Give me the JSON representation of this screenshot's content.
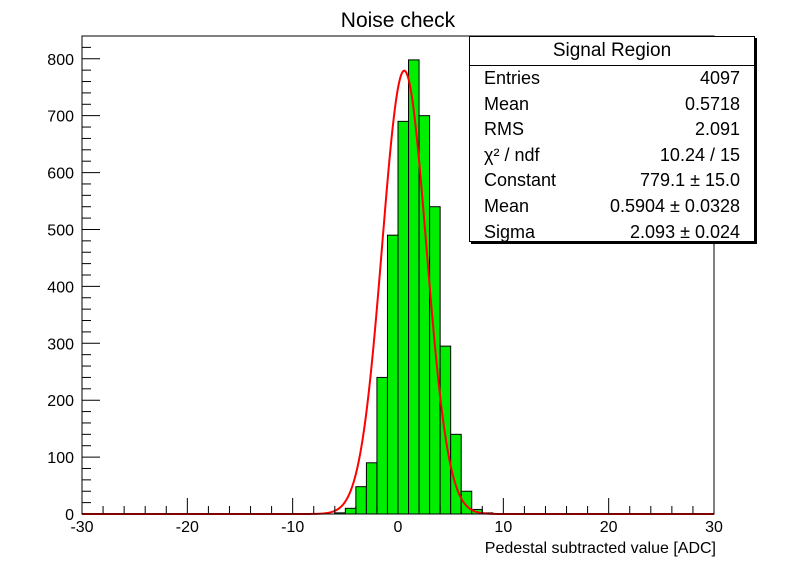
{
  "chart_data": {
    "type": "bar",
    "title": "Noise check",
    "xlabel": "Pedestal subtracted value [ADC]",
    "ylabel": "",
    "xlim": [
      -30,
      30
    ],
    "ylim": [
      0,
      840
    ],
    "x_ticks": [
      -30,
      -20,
      -10,
      0,
      10,
      20,
      30
    ],
    "x_tick_labels": [
      "-30",
      "-20",
      "-10",
      "0",
      "10",
      "20",
      "30"
    ],
    "y_ticks": [
      0,
      100,
      200,
      300,
      400,
      500,
      600,
      700,
      800
    ],
    "y_tick_labels": [
      "0",
      "100",
      "200",
      "300",
      "400",
      "500",
      "600",
      "700",
      "800"
    ],
    "bin_width": 1,
    "bin_edges_start": -6,
    "values": [
      2,
      10,
      48,
      90,
      240,
      490,
      690,
      798,
      700,
      540,
      295,
      140,
      40,
      8,
      2
    ],
    "fill_color": "#00ee00",
    "fit_color": "#ff0000",
    "fit": {
      "type": "gaussian",
      "constant": 779.1,
      "mean": 0.5904,
      "sigma": 2.093
    },
    "stats": {
      "title": "Signal Region",
      "rows": [
        {
          "label": "Entries",
          "value": "4097"
        },
        {
          "label": "Mean",
          "value": "0.5718"
        },
        {
          "label": "RMS",
          "value": "2.091"
        },
        {
          "label": "χ² / ndf",
          "value": "10.24 / 15"
        },
        {
          "label": "Constant",
          "value": "779.1 ± 15.0"
        },
        {
          "label": "Mean",
          "value": "0.5904 ± 0.0328"
        },
        {
          "label": "Sigma",
          "value": "2.093 ± 0.024"
        }
      ]
    }
  }
}
